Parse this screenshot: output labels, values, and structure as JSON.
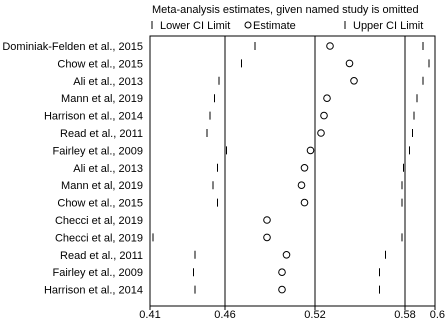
{
  "chart_data": {
    "type": "scatter",
    "title": "Meta-analysis estimates, given named study is omitted",
    "legend": [
      {
        "key": "lower",
        "label": "Lower CI Limit",
        "marker": "tick"
      },
      {
        "key": "estimate",
        "label": "Estimate",
        "marker": "circle"
      },
      {
        "key": "upper",
        "label": "Upper CI Limit",
        "marker": "tick"
      }
    ],
    "xlim": [
      0.41,
      0.6
    ],
    "xticks": [
      "0.41",
      "0.46",
      "0.52",
      "0.58",
      "0.6"
    ],
    "reference_lines": [
      0.46,
      0.52,
      0.58
    ],
    "studies": [
      {
        "label": "Dominiak-Felden et al., 2015",
        "lower": 0.48,
        "estimate": 0.53,
        "upper": 0.592
      },
      {
        "label": "Chow et al., 2015",
        "lower": 0.471,
        "estimate": 0.543,
        "upper": 0.596
      },
      {
        "label": "Ali et al., 2013",
        "lower": 0.456,
        "estimate": 0.546,
        "upper": 0.592
      },
      {
        "label": "Mann et al, 2019",
        "lower": 0.453,
        "estimate": 0.528,
        "upper": 0.588
      },
      {
        "label": "Harrison et al., 2014",
        "lower": 0.45,
        "estimate": 0.526,
        "upper": 0.586
      },
      {
        "label": "Read et al., 2011",
        "lower": 0.448,
        "estimate": 0.524,
        "upper": 0.585
      },
      {
        "label": "Fairley et al., 2009",
        "lower": 0.461,
        "estimate": 0.517,
        "upper": 0.583
      },
      {
        "label": "Ali et al., 2013",
        "lower": 0.455,
        "estimate": 0.513,
        "upper": 0.579
      },
      {
        "label": "Mann et al, 2019",
        "lower": 0.452,
        "estimate": 0.511,
        "upper": 0.578
      },
      {
        "label": "Chow et al., 2015",
        "lower": 0.455,
        "estimate": 0.513,
        "upper": 0.578
      },
      {
        "label": "Checci et al, 2019",
        "lower": 0.46,
        "estimate": 0.488,
        "upper": 0.58
      },
      {
        "label": "Checci et al, 2019",
        "lower": 0.412,
        "estimate": 0.488,
        "upper": 0.578
      },
      {
        "label": "Read et al., 2011",
        "lower": 0.44,
        "estimate": 0.501,
        "upper": 0.567
      },
      {
        "label": "Fairley et al., 2009",
        "lower": 0.439,
        "estimate": 0.498,
        "upper": 0.563
      },
      {
        "label": "Harrison et al., 2014",
        "lower": 0.44,
        "estimate": 0.498,
        "upper": 0.563
      }
    ]
  }
}
